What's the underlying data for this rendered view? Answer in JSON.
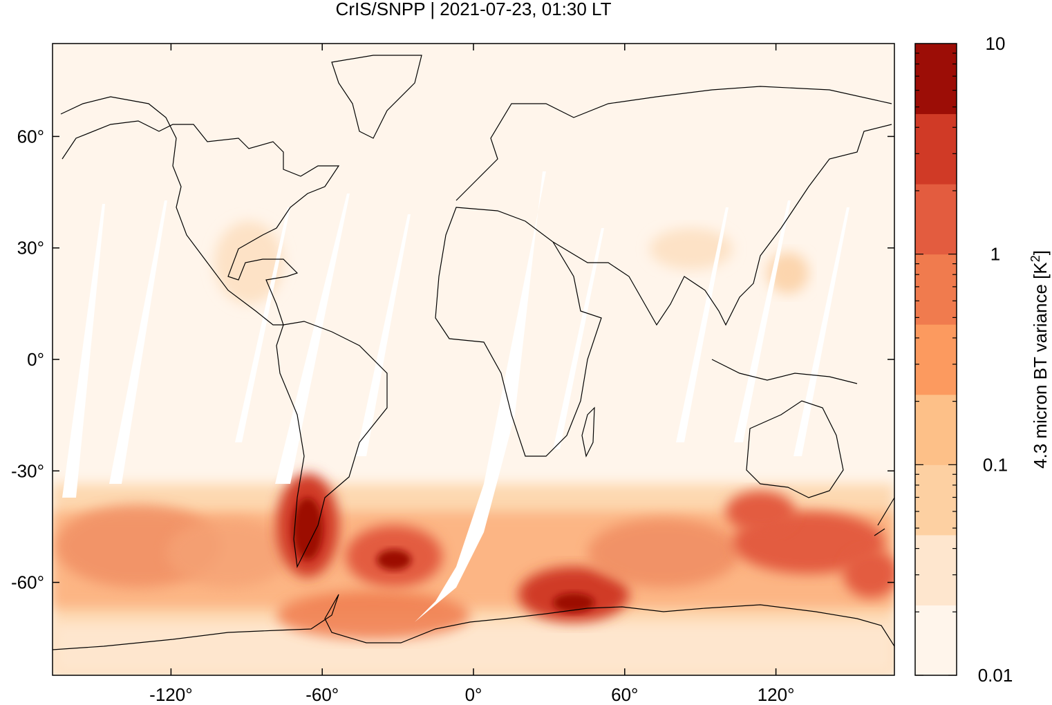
{
  "chart_data": {
    "type": "heatmap",
    "title": "CrIS/SNPP | 2021-07-23, 01:30 LT",
    "x_ticks": [
      "-120°",
      "-60°",
      "0°",
      "60°",
      "120°"
    ],
    "x_tick_values": [
      -120,
      -60,
      0,
      60,
      120
    ],
    "y_ticks": [
      "60°",
      "30°",
      "0°",
      "-30°",
      "-60°"
    ],
    "y_tick_values": [
      60,
      30,
      0,
      -30,
      -60
    ],
    "xlim": [
      -167,
      167
    ],
    "ylim": [
      -85,
      85
    ],
    "colorbar": {
      "label_main": "4.3 micron BT variance [K",
      "label_sup": "2",
      "label_close": "]",
      "scale": "log",
      "range": [
        0.01,
        10
      ],
      "tick_labels": [
        "10",
        "1",
        "0.1",
        "0.01"
      ],
      "tick_values": [
        10,
        1,
        0.1,
        0.01
      ],
      "colors": [
        "#fff5eb",
        "#fee6ce",
        "#fdd0a2",
        "#fdc088",
        "#fc9a5f",
        "#f07b4e",
        "#e35c3f",
        "#d03a26",
        "#9c0d06"
      ]
    },
    "field": [
      {
        "region": "southern-hemisphere-storm-belt",
        "lat": [
          -65,
          -35
        ],
        "variance": "0.1-1"
      },
      {
        "region": "southern-andes-patagonia",
        "lon": [
          -75,
          -60
        ],
        "lat": [
          -55,
          -35
        ],
        "variance": "3-10"
      },
      {
        "region": "south-atlantic-hotspot",
        "lon": [
          -40,
          -25
        ],
        "lat": [
          -58,
          -50
        ],
        "variance": "3-10"
      },
      {
        "region": "drake-passage-antarctic-coast",
        "lon": [
          30,
          60
        ],
        "lat": [
          -70,
          -60
        ],
        "variance": "3-10"
      },
      {
        "region": "south-of-australia-new-zealand",
        "lon": [
          110,
          165
        ],
        "lat": [
          -55,
          -40
        ],
        "variance": "1-3"
      },
      {
        "region": "background-tropics-midlatitudes",
        "lat": [
          -30,
          85
        ],
        "variance": "0.01-0.03"
      }
    ]
  }
}
